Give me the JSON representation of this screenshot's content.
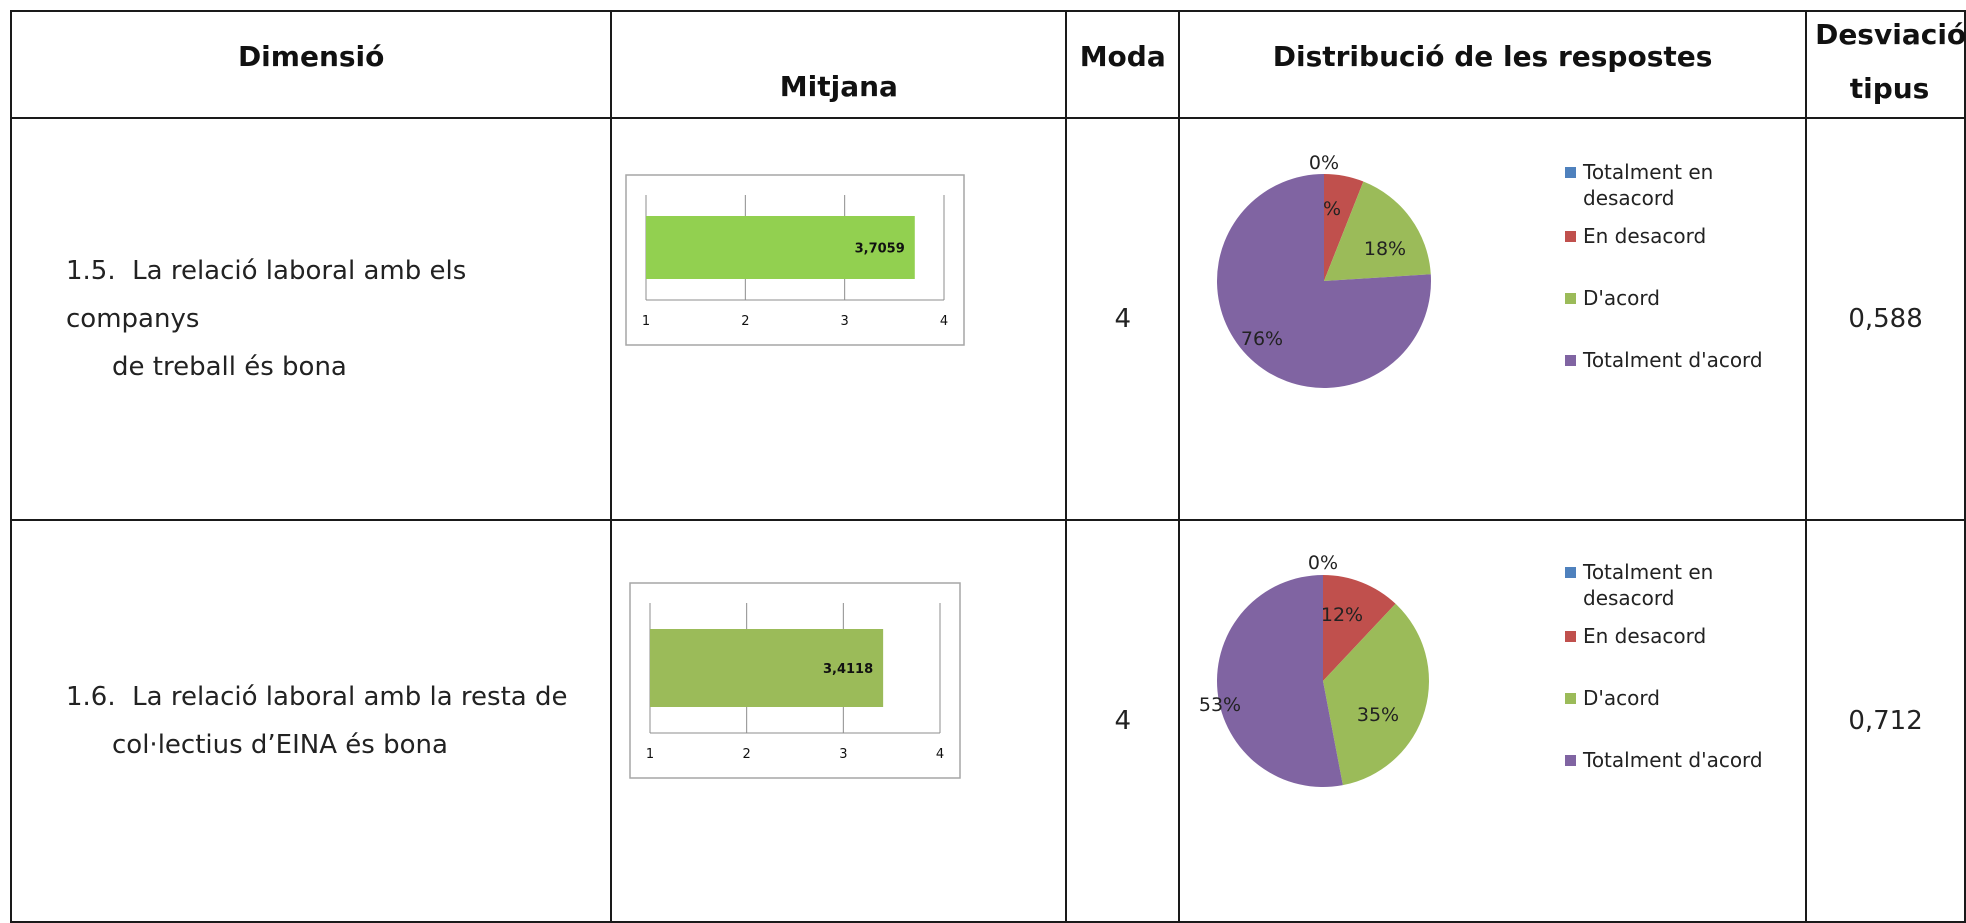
{
  "headers": {
    "dimension": "Dimensió",
    "mean": "Mitjana",
    "mode": "Moda",
    "distribution": "Distribució de les respostes",
    "stddev_line1": "Desviació",
    "stddev_line2": "tipus"
  },
  "rows": [
    {
      "number": "1.5.",
      "dimension_line1": "La relació laboral amb els companys",
      "dimension_line2": "de treball és bona",
      "mode": "4",
      "stddev": "0,588"
    },
    {
      "number": "1.6.",
      "dimension_line1": "La relació laboral amb la resta de",
      "dimension_line2": "col·lectius d’EINA és bona",
      "mode": "4",
      "stddev": "0,712"
    }
  ],
  "legend": [
    "Totalment en desacord",
    "En desacord",
    "D'acord",
    "Totalment d'acord"
  ],
  "colors": {
    "totalment_desacord": "#4f81bd",
    "en_desacord": "#c0504d",
    "dacord": "#9bbb59",
    "totalment_dacord": "#8064a2",
    "bar_row1": "#92d050",
    "bar_row2": "#9bbb59"
  },
  "chart_data": [
    {
      "type": "bar",
      "orientation": "horizontal",
      "values": [
        3.7059
      ],
      "value_labels": [
        "3,7059"
      ],
      "xlim": [
        1,
        4
      ],
      "xticks": [
        "1",
        "2",
        "3",
        "4"
      ],
      "grid": true
    },
    {
      "type": "pie",
      "categories": [
        "Totalment en desacord",
        "En desacord",
        "D'acord",
        "Totalment d'acord"
      ],
      "values": [
        0,
        6,
        18,
        76
      ],
      "labels": [
        "0%",
        "6%",
        "18%",
        "76%"
      ],
      "legend": "right"
    },
    {
      "type": "bar",
      "orientation": "horizontal",
      "values": [
        3.4118
      ],
      "value_labels": [
        "3,4118"
      ],
      "xlim": [
        1,
        4
      ],
      "xticks": [
        "1",
        "2",
        "3",
        "4"
      ],
      "grid": true
    },
    {
      "type": "pie",
      "categories": [
        "Totalment en desacord",
        "En desacord",
        "D'acord",
        "Totalment d'acord"
      ],
      "values": [
        0,
        12,
        35,
        53
      ],
      "labels": [
        "0%",
        "12%",
        "35%",
        "53%"
      ],
      "legend": "right"
    }
  ]
}
